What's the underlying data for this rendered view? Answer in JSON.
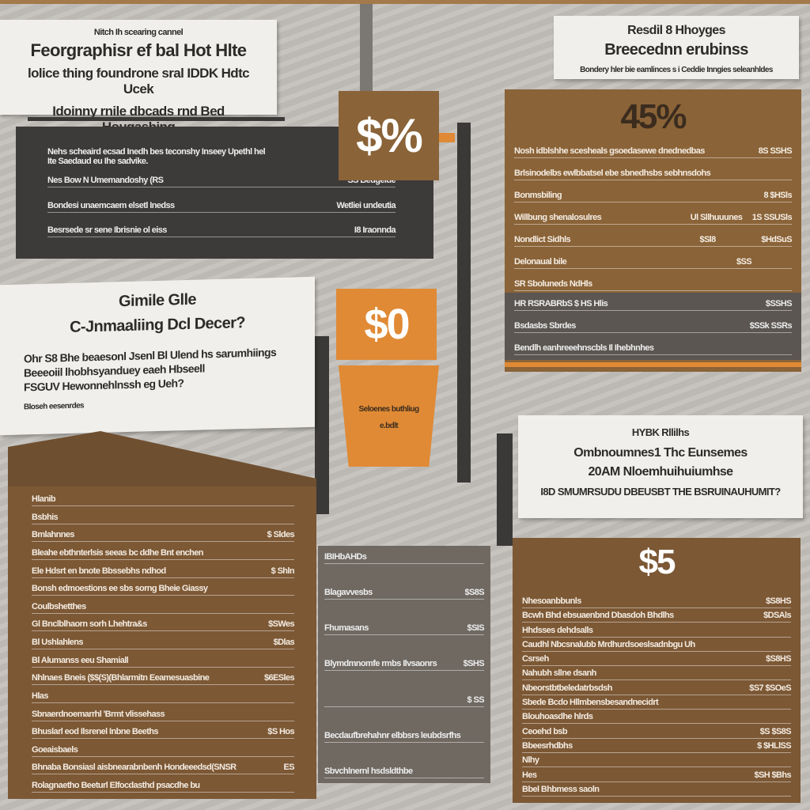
{
  "top_left": {
    "kicker": "Nitch Ih scearing cannel",
    "title": "Feorgraphisr ef bal Hot Hlte",
    "lines": [
      "lolice thing foundrone sral IDDK Hdtc Ucek",
      "Idoinny rnile dbcads rnd Bed Hougashing"
    ]
  },
  "dark_panel": {
    "intro": [
      "Nehs scheaird ecsad Inedh bes teconshy Inseey Upethl hel",
      "Ite Saedaud eu Ihe sadvike."
    ],
    "rows": [
      {
        "text": "Nes Bow N Umemandoshy (RS",
        "price": "SS Beugeide"
      },
      {
        "text": "Bondesi unaemcaem elsetl Inedss",
        "price": "Wetliei undeutia"
      },
      {
        "text": "Besrsede sr sene Ibrisnie ol eiss",
        "price": "I8 Iraonnda"
      }
    ]
  },
  "badge_top": "$%",
  "right_top": {
    "title": "Resdil 8 Hhoyges",
    "subtitle": "Breecednn erubinss",
    "caption": "Bondery hler bie eamlinces s i Ceddie Inngies seleanhldes"
  },
  "price_panel": {
    "big": "45%",
    "rows": [
      {
        "text": "Nosh idblshhe scesheals gsoedasewe dnednedbas",
        "price": "8S SSHS"
      },
      {
        "text": "Brlsinodelbs ewlbbatsel ebe sbnedhsbs sebhnsdohs"
      },
      {
        "text": "Bonmsbiling",
        "price": "8 $HSls"
      },
      {
        "text": "Willbung shenalosulres",
        "note": "Ul Sllhuuunes",
        "price": "1S SSUSls"
      },
      {
        "text": "Nondlict Sidhls",
        "note": "$Sl8",
        "price": "$HdSuS"
      },
      {
        "text": "Delonaual bile",
        "note": "$SS"
      },
      {
        "text": "SR Sboluneds NdHls"
      }
    ],
    "band_rows": [
      {
        "text": "HR RSRABRbS $ HS Hlis",
        "price": "$SSHS"
      },
      {
        "text": "Bsdasbs Sbrdes",
        "price": "$SSk SSRs"
      },
      {
        "text": "Bendlh eanhreeehnscbls Il Ihebhnhes"
      }
    ]
  },
  "left_mid": {
    "title": "Gimile Glle",
    "subtitle": "C-Jnmaaliing Dcl Decer?",
    "lines": [
      "Ohr S8 Bhe beaesonl Jsenl Bl Ulend hs sarumhiings",
      "Beeeoiil lhobhsyanduey eaeh Hbseell",
      "FSGUV Hewonnehlnssh eg Ueh?"
    ],
    "footnote": "Bloseh eesenrdes"
  },
  "badge_orange": "$0",
  "cup": {
    "lines": [
      "Seloenes buthliug",
      "e.bdlt"
    ]
  },
  "right_mid": {
    "title": "HYBK Rllilhs",
    "lines": [
      "Ombnoumnes1 Thc Eunsemes",
      "20AM Nloemhuihuiumhse",
      "I8D SMUMRSUDU DBEUSBT THE BSRUINAUHUMIT?"
    ]
  },
  "bottom_left": {
    "rows": [
      {
        "text": "Hlanib"
      },
      {
        "text": "Bsbhis"
      },
      {
        "text": "Bmlahnnes",
        "price": "$ Sldes"
      },
      {
        "text": "Bleahe ebthnterlsis seeas bc ddhe Bnt enchen"
      },
      {
        "text": "Ele Hdsrt en bnote Bbssebhs ndhod",
        "price": "$ Shln"
      },
      {
        "text": "Bonsh edmoestions ee sbs sorng Bheie Giassy"
      },
      {
        "text": "Coulbshetthes"
      },
      {
        "text": "Gl Bnclblhaorn sorh Lhehtra&s",
        "price": "$SWes"
      },
      {
        "text": "Bl Ushlahlens",
        "price": "$Dlas"
      },
      {
        "text": "Bl Alumanss eeu Shamiall"
      },
      {
        "text": "Nhlnaes Bneis ($$(S)(Bhlarmitn Eeamesuasbine",
        "price": "$6ESles"
      },
      {
        "text": "Hlas"
      },
      {
        "text": "Sbnaerdnoemarrhl 'Brmt vlissehass"
      },
      {
        "text": "Bhuslarl eod Ilsrenel Inbne Beeths",
        "price": "$S Hos"
      },
      {
        "text": "Goeaisbaels"
      },
      {
        "text": "Bhnaba Bonsiasl aisbnearabnbenh Hondeeedsd(SNSR",
        "price": "ES"
      },
      {
        "text": "Rolagnaetho Beeturl Elfocdasthd psacdhe bu"
      }
    ]
  },
  "bottom_mid": {
    "rows": [
      {
        "text": "IBIHbAHDs"
      },
      {
        "text": "Blagavvesbs",
        "price": "$S8S"
      },
      {
        "text": "Fhumasans",
        "price": "$SIS"
      },
      {
        "text": "Blymdmnomfe rmbs Ilvsaonrs",
        "price": "$SHS"
      },
      {
        "price": "$ SS"
      },
      {
        "text": "Becdaufbrehahnr elbbsrs leubdsrfhs"
      },
      {
        "text": "Sbvchlnernl hsdsldthbe"
      }
    ]
  },
  "bottom_right": {
    "big": "$5",
    "rows": [
      {
        "text": "Nhesoanbbunls",
        "price": "$S8HS"
      },
      {
        "text": "Bcwh Bhd ebsuaenbnd Dbasdoh Bhdlhs",
        "price": "$DSAls"
      },
      {
        "text": "Hhdsses dehdsalls"
      },
      {
        "text": "Caudhl Nbcsnalubb Mrdhurdsoeslsadnbgu Uh"
      },
      {
        "text": "Csrseh",
        "price": "$S8HS"
      },
      {
        "text": "Nahubh sllne dsanh"
      },
      {
        "text": "Nbeorstbtbeledatrbsdsh",
        "price": "$S7 $SOeS"
      },
      {
        "text": "Sbede Bcdo Hllmbensbesandnecidrt"
      },
      {
        "text": "Blouhoasdhe hlrds"
      },
      {
        "text": "Ceoehd bsb",
        "price": "$S $S8S"
      },
      {
        "text": "Bbeesrhdbhs",
        "price": "$ $HLlSS"
      },
      {
        "text": "Nlhy"
      },
      {
        "text": "Hes",
        "price": "$SH $Bhs"
      },
      {
        "text": "Bbel Bhbmess saoln"
      }
    ]
  }
}
